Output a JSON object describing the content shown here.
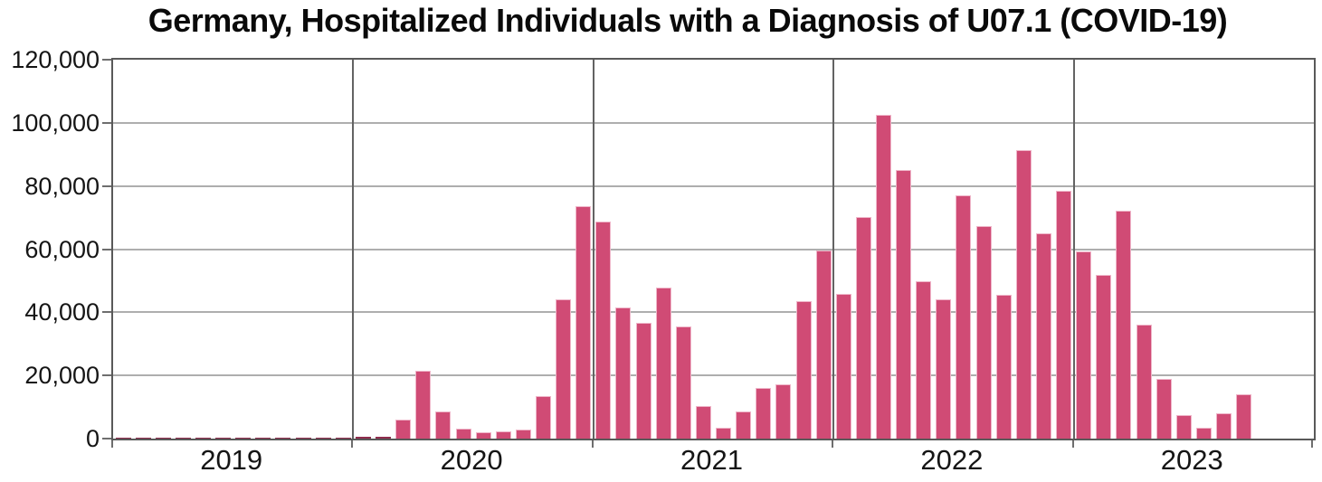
{
  "chart_data": {
    "type": "bar",
    "title": "Germany, Hospitalized Individuals with a Diagnosis of U07.1 (COVID-19)",
    "xlabel": "",
    "ylabel": "",
    "ylim": [
      0,
      120000
    ],
    "y_ticks": [
      0,
      20000,
      40000,
      60000,
      80000,
      100000,
      120000
    ],
    "y_tick_labels": [
      "0",
      "20,000",
      "40,000",
      "60,000",
      "80,000",
      "100,000",
      "120,000"
    ],
    "x_year_labels": [
      "2019",
      "2020",
      "2021",
      "2022",
      "2023"
    ],
    "legend": "none",
    "grid": {
      "horizontal": "light gray every 20,000",
      "vertical": "dark gray at year boundaries"
    },
    "bar_color": "#d04b75",
    "x": [
      "2019-01",
      "2019-02",
      "2019-03",
      "2019-04",
      "2019-05",
      "2019-06",
      "2019-07",
      "2019-08",
      "2019-09",
      "2019-10",
      "2019-11",
      "2019-12",
      "2020-01",
      "2020-02",
      "2020-03",
      "2020-04",
      "2020-05",
      "2020-06",
      "2020-07",
      "2020-08",
      "2020-09",
      "2020-10",
      "2020-11",
      "2020-12",
      "2021-01",
      "2021-02",
      "2021-03",
      "2021-04",
      "2021-05",
      "2021-06",
      "2021-07",
      "2021-08",
      "2021-09",
      "2021-10",
      "2021-11",
      "2021-12",
      "2022-01",
      "2022-02",
      "2022-03",
      "2022-04",
      "2022-05",
      "2022-06",
      "2022-07",
      "2022-08",
      "2022-09",
      "2022-10",
      "2022-11",
      "2022-12",
      "2023-01",
      "2023-02",
      "2023-03",
      "2023-04",
      "2023-05",
      "2023-06",
      "2023-07",
      "2023-08",
      "2023-09"
    ],
    "values": [
      400,
      400,
      400,
      400,
      400,
      400,
      400,
      400,
      400,
      400,
      400,
      400,
      500,
      600,
      5900,
      21600,
      8700,
      3100,
      1900,
      2200,
      2900,
      13400,
      44200,
      73500,
      68600,
      41600,
      36700,
      47900,
      35600,
      10200,
      3300,
      8500,
      15900,
      17100,
      43400,
      59700,
      45900,
      70300,
      102500,
      85200,
      49800,
      44100,
      77000,
      67300,
      45600,
      91300,
      64900,
      78400,
      59300,
      51700,
      72100,
      36100,
      18800,
      7400,
      3300,
      8000,
      13900
    ]
  }
}
